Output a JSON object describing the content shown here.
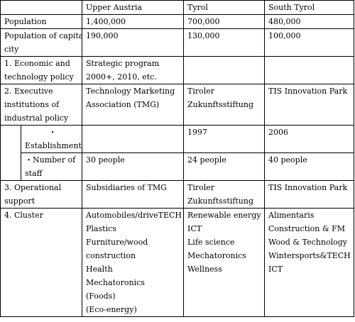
{
  "header": {
    "col1": "Upper Austria",
    "col2": "Tyrol",
    "col3": "South Tyrol"
  },
  "rows": {
    "population": {
      "label": "Population",
      "upper_austria": "1,400,000",
      "tyrol": "700,000",
      "south_tyrol": "480,000"
    },
    "capital_population": {
      "label_line1": "Population of capital",
      "label_line2": "city",
      "upper_austria": "190,000",
      "tyrol": "130,000",
      "south_tyrol": "100,000"
    },
    "economic_policy": {
      "label_line1": "1. Economic and",
      "label_line2": "technology policy",
      "upper_austria_line1": "Strategic program",
      "upper_austria_line2": "2000+, 2010, etc.",
      "tyrol": "",
      "south_tyrol": ""
    },
    "executive_institutions": {
      "label_line1": "2. Executive",
      "label_line2": "institutions of",
      "label_line3": "industrial policy",
      "upper_austria_line1": "Technology Marketing",
      "upper_austria_line2": "Association (TMG)",
      "tyrol_line1": "Tiroler",
      "tyrol_line2": "Zukunftsstiftung",
      "south_tyrol": "TIS Innovation Park"
    },
    "establishment": {
      "bullet": "・",
      "label": "Establishment",
      "upper_austria": "",
      "tyrol": "1997",
      "south_tyrol": "2006"
    },
    "staff": {
      "label_line1": "・Number of",
      "label_line2": "staff",
      "upper_austria": "30 people",
      "tyrol": "24 people",
      "south_tyrol": "40 people"
    },
    "operational_support": {
      "label_line1": "3. Operational",
      "label_line2": "support",
      "upper_austria": "Subsidiaries of TMG",
      "tyrol_line1": "Tiroler",
      "tyrol_line2": "Zukunftsstiftung",
      "south_tyrol": "TIS Innovation Park"
    },
    "cluster": {
      "label": "4. Cluster",
      "upper_austria": [
        "Automobiles/driveTECH",
        "Plastics",
        "Furniture/wood",
        "construction",
        "Health",
        "Mechatoronics",
        "(Foods)",
        "(Eco-energy)"
      ],
      "tyrol": [
        "Renewable energy",
        "ICT",
        "Life science",
        "Mechatoronics",
        "Wellness"
      ],
      "south_tyrol": [
        "Alimentaris",
        "Construction & FM",
        "Wood & Technology",
        "Wintersports&TECH",
        "ICT"
      ]
    }
  }
}
